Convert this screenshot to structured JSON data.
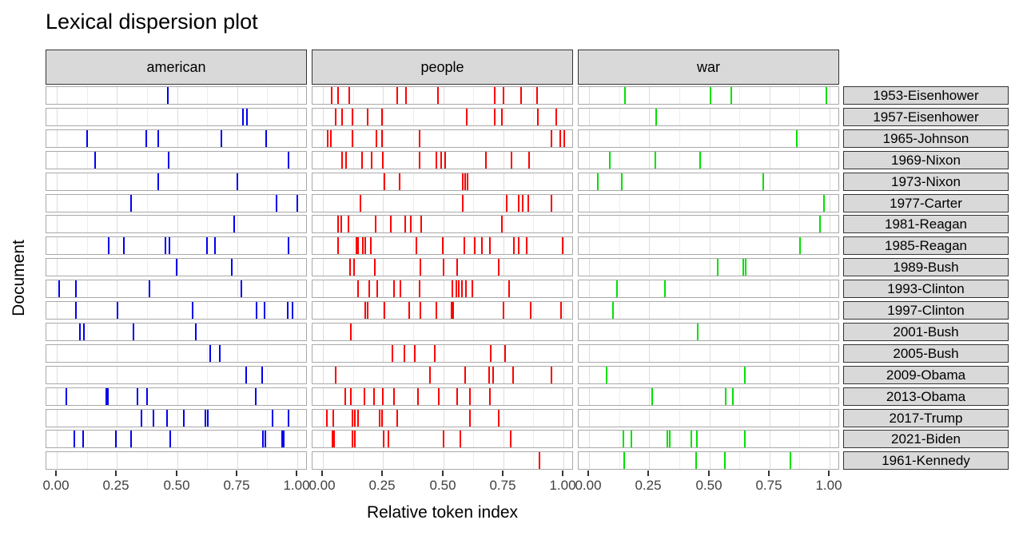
{
  "title": "Lexical dispersion plot",
  "chart_data": {
    "type": "scatter",
    "subtype": "lexical-dispersion-rug",
    "title": "Lexical dispersion plot",
    "xlabel": "Relative token index",
    "ylabel": "Document",
    "x_range": [
      0,
      1
    ],
    "x_tick_labels": [
      "0.00",
      "0.25",
      "0.50",
      "0.75",
      "1.00"
    ],
    "grid": "on",
    "legend": "none",
    "facet_columns": [
      "american",
      "people",
      "war"
    ],
    "series_colors": {
      "american": "#0000ee",
      "people": "#ff0000",
      "war": "#00e100"
    },
    "rows": [
      {
        "label": "1953-Eisenhower",
        "marks": {
          "american": [
            0.46
          ],
          "people": [
            0.033,
            0.059,
            0.106,
            0.307,
            0.342,
            0.476,
            0.712,
            0.747,
            0.821,
            0.886
          ],
          "war": [
            0.147,
            0.503,
            0.587,
            0.985
          ]
        }
      },
      {
        "label": "1957-Eisenhower",
        "marks": {
          "american": [
            0.772,
            0.786
          ],
          "people": [
            0.051,
            0.076,
            0.118,
            0.183,
            0.244,
            0.596,
            0.71,
            0.74,
            0.892,
            0.967
          ],
          "war": [
            0.276
          ]
        }
      },
      {
        "label": "1965-Johnson",
        "marks": {
          "american": [
            0.122,
            0.368,
            0.419,
            0.682,
            0.866
          ],
          "people": [
            0.017,
            0.029,
            0.121,
            0.22,
            0.242,
            0.397,
            0.946,
            0.985,
            1.0
          ],
          "war": [
            0.86
          ]
        }
      },
      {
        "label": "1969-Nixon",
        "marks": {
          "american": [
            0.157,
            0.461,
            0.962
          ],
          "people": [
            0.076,
            0.093,
            0.159,
            0.199,
            0.247,
            0.397,
            0.469,
            0.49,
            0.505,
            0.676,
            0.781,
            0.854
          ],
          "war": [
            0.083,
            0.273,
            0.46
          ]
        }
      },
      {
        "label": "1973-Nixon",
        "marks": {
          "american": [
            0.417,
            0.749
          ],
          "people": [
            0.251,
            0.314,
            0.578,
            0.588,
            0.598
          ],
          "war": [
            0.033,
            0.133,
            0.72
          ]
        }
      },
      {
        "label": "1977-Carter",
        "marks": {
          "american": [
            0.304,
            0.911,
            0.998
          ],
          "people": [
            0.154,
            0.579,
            0.762,
            0.811,
            0.829,
            0.851,
            0.946
          ],
          "war": [
            0.975
          ]
        }
      },
      {
        "label": "1981-Reagan",
        "marks": {
          "american": [
            0.733
          ],
          "people": [
            0.061,
            0.072,
            0.103,
            0.217,
            0.278,
            0.34,
            0.363,
            0.404,
            0.742
          ],
          "war": [
            0.956
          ]
        }
      },
      {
        "label": "1985-Reagan",
        "marks": {
          "american": [
            0.212,
            0.276,
            0.448,
            0.464,
            0.622,
            0.653,
            0.959
          ],
          "people": [
            0.058,
            0.135,
            0.143,
            0.162,
            0.172,
            0.196,
            0.384,
            0.494,
            0.584,
            0.628,
            0.658,
            0.69,
            0.792,
            0.81,
            0.843,
            0.994
          ],
          "war": [
            0.873
          ]
        }
      },
      {
        "label": "1989-Bush",
        "marks": {
          "american": [
            0.496,
            0.724
          ],
          "people": [
            0.109,
            0.126,
            0.212,
            0.403,
            0.499,
            0.554,
            0.728
          ],
          "war": [
            0.53,
            0.637,
            0.647
          ]
        }
      },
      {
        "label": "1993-Clinton",
        "marks": {
          "american": [
            0.006,
            0.076,
            0.381,
            0.764
          ],
          "people": [
            0.144,
            0.19,
            0.221,
            0.293,
            0.318,
            0.4,
            0.536,
            0.55,
            0.562,
            0.576,
            0.59,
            0.618,
            0.77
          ],
          "war": [
            0.114,
            0.312
          ]
        }
      },
      {
        "label": "1997-Clinton",
        "marks": {
          "american": [
            0.076,
            0.248,
            0.56,
            0.827,
            0.859,
            0.956,
            0.978
          ],
          "people": [
            0.171,
            0.182,
            0.254,
            0.354,
            0.402,
            0.469,
            0.53,
            0.538,
            0.746,
            0.859,
            0.987
          ],
          "war": [
            0.097
          ]
        }
      },
      {
        "label": "2001-Bush",
        "marks": {
          "american": [
            0.092,
            0.109,
            0.317,
            0.576
          ],
          "people": [
            0.112
          ],
          "war": [
            0.45
          ]
        }
      },
      {
        "label": "2005-Bush",
        "marks": {
          "american": [
            0.634,
            0.673
          ],
          "people": [
            0.287,
            0.334,
            0.379,
            0.463,
            0.696,
            0.753
          ],
          "war": []
        }
      },
      {
        "label": "2009-Obama",
        "marks": {
          "american": [
            0.783,
            0.85
          ],
          "people": [
            0.051,
            0.442,
            0.587,
            0.687,
            0.704,
            0.789,
            0.946
          ],
          "war": [
            0.07,
            0.644
          ]
        }
      },
      {
        "label": "2013-Obama",
        "marks": {
          "american": [
            0.036,
            0.203,
            0.21,
            0.332,
            0.372,
            0.824
          ],
          "people": [
            0.089,
            0.112,
            0.169,
            0.209,
            0.247,
            0.292,
            0.391,
            0.478,
            0.554,
            0.608,
            0.69
          ],
          "war": [
            0.258,
            0.565,
            0.595
          ]
        }
      },
      {
        "label": "2017-Trump",
        "marks": {
          "american": [
            0.35,
            0.399,
            0.456,
            0.526,
            0.615,
            0.625,
            0.894,
            0.959
          ],
          "people": [
            0.014,
            0.04,
            0.118,
            0.13,
            0.142,
            0.232,
            0.242,
            0.304,
            0.609,
            0.729
          ],
          "war": []
        }
      },
      {
        "label": "2021-Biden",
        "marks": {
          "american": [
            0.068,
            0.107,
            0.244,
            0.304,
            0.467,
            0.855,
            0.863,
            0.933,
            0.941
          ],
          "people": [
            0.035,
            0.043,
            0.121,
            0.129,
            0.248,
            0.27,
            0.497,
            0.569,
            0.778
          ],
          "war": [
            0.139,
            0.173,
            0.321,
            0.331,
            0.423,
            0.444,
            0.644
          ]
        }
      },
      {
        "label": "1961-Kennedy",
        "marks": {
          "american": [],
          "people": [
            0.897
          ],
          "war": [
            0.144,
            0.441,
            0.563,
            0.833
          ]
        }
      }
    ]
  }
}
